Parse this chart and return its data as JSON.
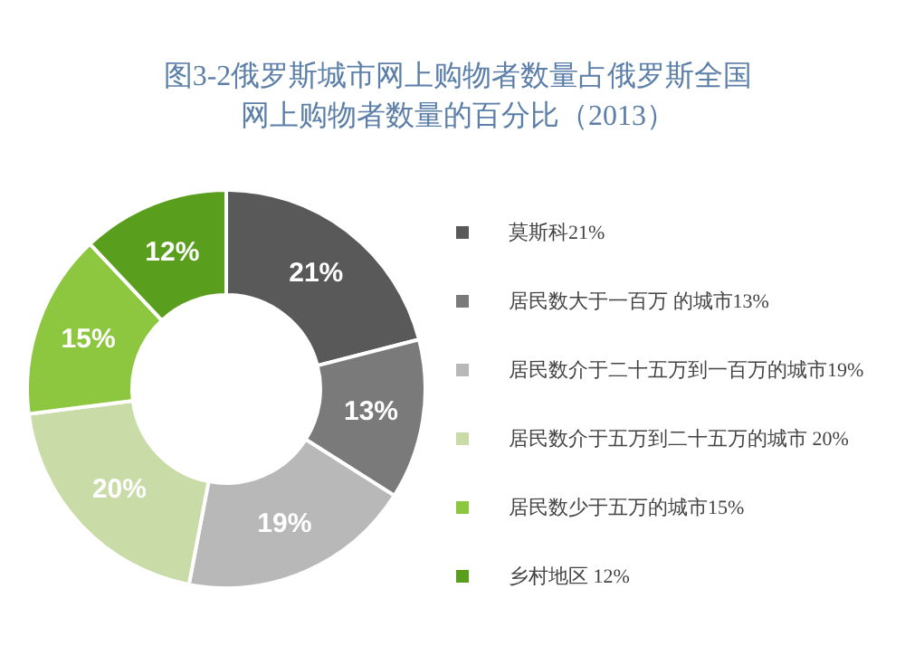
{
  "chart_data": {
    "type": "donut",
    "title": "图3-2俄罗斯城市网上购物者数量占俄罗斯全国网上购物者数量的百分比（2013）",
    "categories": [
      "莫斯科21%",
      "居民数大于一百万 的城市13%",
      "居民数介于二十五万到一百万的城市19%",
      "居民数介于五万到二十五万的城市 20%",
      "居民数少于五万的城市15%",
      "乡村地区 12%"
    ],
    "values": [
      21,
      13,
      19,
      20,
      15,
      12
    ],
    "value_labels": [
      "21%",
      "13%",
      "19%",
      "20%",
      "15%",
      "12%"
    ],
    "colors": [
      "#595959",
      "#7a7a7a",
      "#b8b8b8",
      "#c9dba6",
      "#8dc63f",
      "#5a9e1e"
    ],
    "legend": "right"
  }
}
